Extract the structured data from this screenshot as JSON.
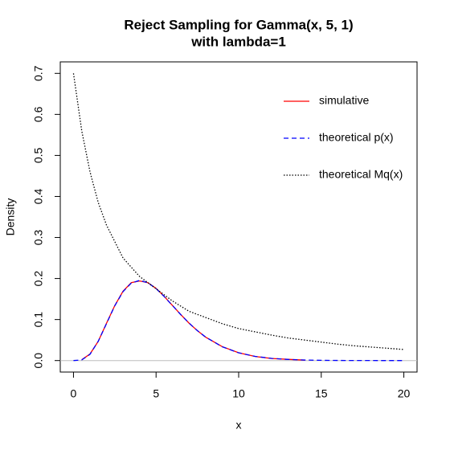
{
  "chart_data": {
    "type": "line",
    "title": [
      "Reject Sampling for Gamma(x, 5, 1)",
      "with lambda=1"
    ],
    "x_label": "x",
    "y_label": "Density",
    "xlim": [
      -0.8,
      20.8
    ],
    "ylim": [
      -0.028,
      0.728
    ],
    "xticks": [
      0,
      5,
      10,
      15,
      20
    ],
    "yticks": [
      {
        "value": 0,
        "label": "0.0"
      },
      0.1,
      0.2,
      0.3,
      0.4,
      0.5,
      0.6,
      0.7
    ],
    "baseline": {
      "value": 0,
      "color": "#bebebe"
    },
    "series": [
      {
        "name": "simulative",
        "color": "#ff0000",
        "dash": "solid",
        "x": [
          0.5,
          1,
          1.5,
          2,
          2.5,
          3,
          3.5,
          4,
          4.5,
          5,
          5.5,
          6,
          6.5,
          7,
          7.5,
          8,
          9,
          10,
          11,
          12,
          13,
          14
        ],
        "values": [
          0.002,
          0.016,
          0.047,
          0.091,
          0.134,
          0.169,
          0.19,
          0.194,
          0.19,
          0.176,
          0.156,
          0.134,
          0.112,
          0.091,
          0.073,
          0.057,
          0.034,
          0.019,
          0.01,
          0.005,
          0.003,
          0.001
        ]
      },
      {
        "name": "theoretical p(x)",
        "color": "#0000ff",
        "dash": "dashed",
        "x": [
          0,
          0.5,
          1,
          1.5,
          2,
          2.5,
          3,
          3.5,
          4,
          4.5,
          5,
          5.5,
          6,
          6.5,
          7,
          7.5,
          8,
          9,
          10,
          11,
          12,
          13,
          14,
          15,
          16,
          17,
          18,
          19,
          20
        ],
        "values": [
          0,
          0.0016,
          0.0153,
          0.0471,
          0.0902,
          0.1336,
          0.168,
          0.1888,
          0.1954,
          0.1898,
          0.1755,
          0.1557,
          0.1339,
          0.1118,
          0.0912,
          0.0729,
          0.0573,
          0.0337,
          0.0189,
          0.0102,
          0.0053,
          0.0027,
          0.0013,
          0.0006,
          0.0003,
          0.0001,
          0.0001,
          0,
          0
        ]
      },
      {
        "name": "theoretical Mq(x)",
        "color": "#000000",
        "dash": "dotted",
        "x": [
          0,
          0.5,
          1,
          1.5,
          2,
          3,
          4,
          5,
          6,
          7,
          8,
          9,
          10,
          11,
          12,
          13,
          14,
          15,
          16,
          17,
          18,
          19,
          20
        ],
        "values": [
          0.7,
          0.56,
          0.46,
          0.385,
          0.33,
          0.25,
          0.205,
          0.175,
          0.145,
          0.12,
          0.105,
          0.09,
          0.078,
          0.07,
          0.062,
          0.055,
          0.05,
          0.045,
          0.04,
          0.036,
          0.033,
          0.03,
          0.027
        ]
      }
    ]
  }
}
